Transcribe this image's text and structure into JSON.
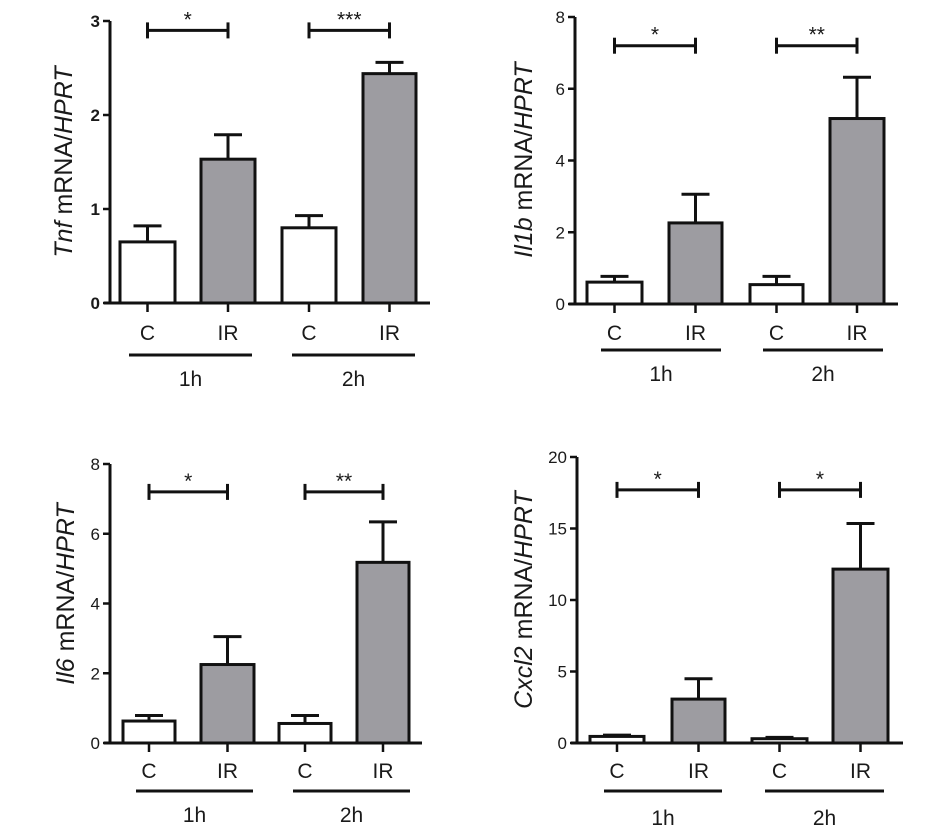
{
  "chart_data": [
    {
      "type": "bar",
      "gene": "Tnf",
      "ylabel_gene": "Tnf",
      "ylabel_rest": " mRNA/",
      "ylabel_ref": "HPRT",
      "ylim": [
        0,
        3
      ],
      "yticks": [
        "0",
        "1",
        "2",
        "3"
      ],
      "ytick_values": [
        0,
        1,
        2,
        3
      ],
      "tick_bold": true,
      "categories": [
        "C",
        "IR",
        "C",
        "IR"
      ],
      "groups": [
        "1h",
        "2h"
      ],
      "values": [
        0.65,
        1.53,
        0.8,
        2.44
      ],
      "errors": [
        0.17,
        0.26,
        0.13,
        0.12
      ],
      "fills": [
        "#ffffff",
        "#9d9ca1",
        "#ffffff",
        "#9d9ca1"
      ],
      "significance": [
        "*",
        "***"
      ],
      "sig_level": 2.9
    },
    {
      "type": "bar",
      "gene": "Il1b",
      "ylabel_gene": "Il1b",
      "ylabel_rest": " mRNA/",
      "ylabel_ref": "HPRT",
      "ylim": [
        0,
        8
      ],
      "yticks": [
        "0",
        "2",
        "4",
        "6",
        "8"
      ],
      "ytick_values": [
        0,
        2,
        4,
        6,
        8
      ],
      "tick_bold": false,
      "categories": [
        "C",
        "IR",
        "C",
        "IR"
      ],
      "groups": [
        "1h",
        "2h"
      ],
      "values": [
        0.61,
        2.26,
        0.54,
        5.17
      ],
      "errors": [
        0.16,
        0.8,
        0.23,
        1.15
      ],
      "fills": [
        "#ffffff",
        "#9d9ca1",
        "#ffffff",
        "#9d9ca1"
      ],
      "significance": [
        "*",
        "**"
      ],
      "sig_level": 7.2
    },
    {
      "type": "bar",
      "gene": "Il6",
      "ylabel_gene": "Il6",
      "ylabel_rest": " mRNA/",
      "ylabel_ref": "HPRT",
      "ylim": [
        0,
        8
      ],
      "yticks": [
        "0",
        "2",
        "4",
        "6",
        "8"
      ],
      "ytick_values": [
        0,
        2,
        4,
        6,
        8
      ],
      "tick_bold": false,
      "categories": [
        "C",
        "IR",
        "C",
        "IR"
      ],
      "groups": [
        "1h",
        "2h"
      ],
      "values": [
        0.63,
        2.25,
        0.56,
        5.18
      ],
      "errors": [
        0.16,
        0.8,
        0.23,
        1.16
      ],
      "fills": [
        "#ffffff",
        "#9d9ca1",
        "#ffffff",
        "#9d9ca1"
      ],
      "significance": [
        "*",
        "**"
      ],
      "sig_level": 7.2
    },
    {
      "type": "bar",
      "gene": "Cxcl2",
      "ylabel_gene": "Cxcl2",
      "ylabel_rest": " mRNA/",
      "ylabel_ref": "HPRT",
      "ylim": [
        0,
        20
      ],
      "yticks": [
        "0",
        "5",
        "10",
        "15",
        "20"
      ],
      "ytick_values": [
        0,
        5,
        10,
        15,
        20
      ],
      "tick_bold": false,
      "categories": [
        "C",
        "IR",
        "C",
        "IR"
      ],
      "groups": [
        "1h",
        "2h"
      ],
      "values": [
        0.46,
        3.07,
        0.3,
        12.16
      ],
      "errors": [
        0.09,
        1.42,
        0.09,
        3.19
      ],
      "fills": [
        "#ffffff",
        "#9d9ca1",
        "#ffffff",
        "#9d9ca1"
      ],
      "significance": [
        "*",
        "*"
      ],
      "sig_level": 17.7
    }
  ]
}
